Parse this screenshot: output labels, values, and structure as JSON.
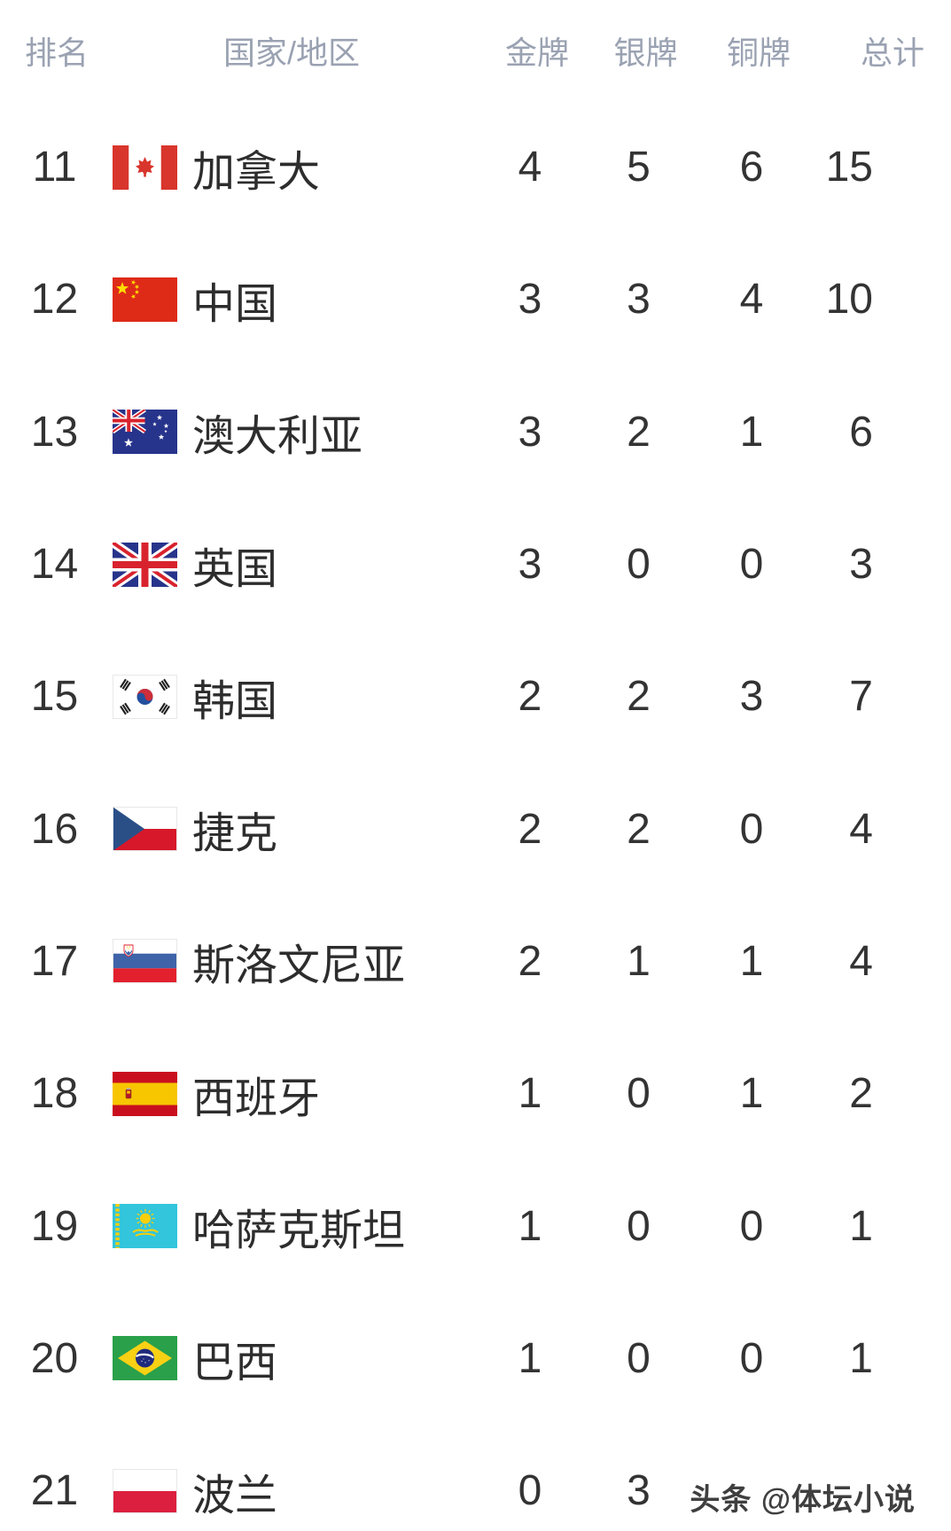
{
  "table": {
    "columns": {
      "rank": "排名",
      "country": "国家/地区",
      "gold": "金牌",
      "silver": "银牌",
      "bronze": "铜牌",
      "total": "总计"
    },
    "rows": [
      {
        "rank": "11",
        "country": "加拿大",
        "flag": "canada",
        "gold": "4",
        "silver": "5",
        "bronze": "6",
        "total": "15"
      },
      {
        "rank": "12",
        "country": "中国",
        "flag": "china",
        "gold": "3",
        "silver": "3",
        "bronze": "4",
        "total": "10"
      },
      {
        "rank": "13",
        "country": "澳大利亚",
        "flag": "australia",
        "gold": "3",
        "silver": "2",
        "bronze": "1",
        "total": "6"
      },
      {
        "rank": "14",
        "country": "英国",
        "flag": "uk",
        "gold": "3",
        "silver": "0",
        "bronze": "0",
        "total": "3"
      },
      {
        "rank": "15",
        "country": "韩国",
        "flag": "south-korea",
        "gold": "2",
        "silver": "2",
        "bronze": "3",
        "total": "7"
      },
      {
        "rank": "16",
        "country": "捷克",
        "flag": "czech",
        "gold": "2",
        "silver": "2",
        "bronze": "0",
        "total": "4"
      },
      {
        "rank": "17",
        "country": "斯洛文尼亚",
        "flag": "slovenia",
        "gold": "2",
        "silver": "1",
        "bronze": "1",
        "total": "4"
      },
      {
        "rank": "18",
        "country": "西班牙",
        "flag": "spain",
        "gold": "1",
        "silver": "0",
        "bronze": "1",
        "total": "2"
      },
      {
        "rank": "19",
        "country": "哈萨克斯坦",
        "flag": "kazakhstan",
        "gold": "1",
        "silver": "0",
        "bronze": "0",
        "total": "1"
      },
      {
        "rank": "20",
        "country": "巴西",
        "flag": "brazil",
        "gold": "1",
        "silver": "0",
        "bronze": "0",
        "total": "1"
      },
      {
        "rank": "21",
        "country": "波兰",
        "flag": "poland",
        "gold": "0",
        "silver": "3",
        "bronze": "",
        "total": ""
      }
    ]
  },
  "watermark": {
    "text": "头条 @体坛小说"
  },
  "colors": {
    "header_text": "#9aa2b2",
    "body_text": "#333333",
    "background": "#ffffff"
  }
}
